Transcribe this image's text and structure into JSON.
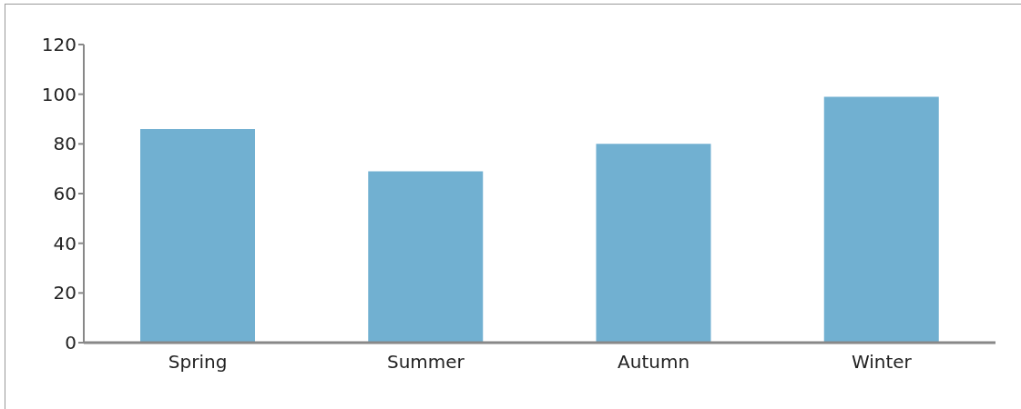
{
  "chart_data": {
    "type": "bar",
    "categories": [
      "Spring",
      "Summer",
      "Autumn",
      "Winter"
    ],
    "values": [
      86,
      69,
      80,
      99
    ],
    "color": "#71b0d1",
    "ylim": [
      0,
      120
    ],
    "yticks": [
      0,
      20,
      40,
      60,
      80,
      100,
      120
    ],
    "grid": false,
    "legend": false
  }
}
